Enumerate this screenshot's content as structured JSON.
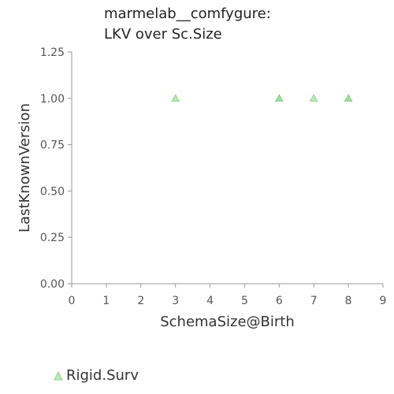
{
  "chart_data": {
    "type": "scatter",
    "title": [
      "marmelab__comfygure:",
      "LKV over Sc.Size"
    ],
    "xlabel": "SchemaSize@Birth",
    "ylabel": "LastKnownVersion",
    "xlim": [
      0,
      9
    ],
    "ylim": [
      0,
      1.25
    ],
    "xticks": [
      "0",
      "1",
      "2",
      "3",
      "4",
      "5",
      "6",
      "7",
      "8",
      "9"
    ],
    "yticks": [
      "0.00",
      "0.25",
      "0.50",
      "0.75",
      "1.00",
      "1.25"
    ],
    "grid": false,
    "legend_position": "bottom-left",
    "series": [
      {
        "name": "Rigid.Surv",
        "marker": "triangle",
        "color": "#8fd18a",
        "points": [
          {
            "x": 3,
            "y": 1.0
          },
          {
            "x": 6,
            "y": 1.0
          },
          {
            "x": 6,
            "y": 1.0
          },
          {
            "x": 7,
            "y": 1.0
          },
          {
            "x": 8,
            "y": 1.0
          },
          {
            "x": 8,
            "y": 1.0
          }
        ]
      }
    ]
  }
}
